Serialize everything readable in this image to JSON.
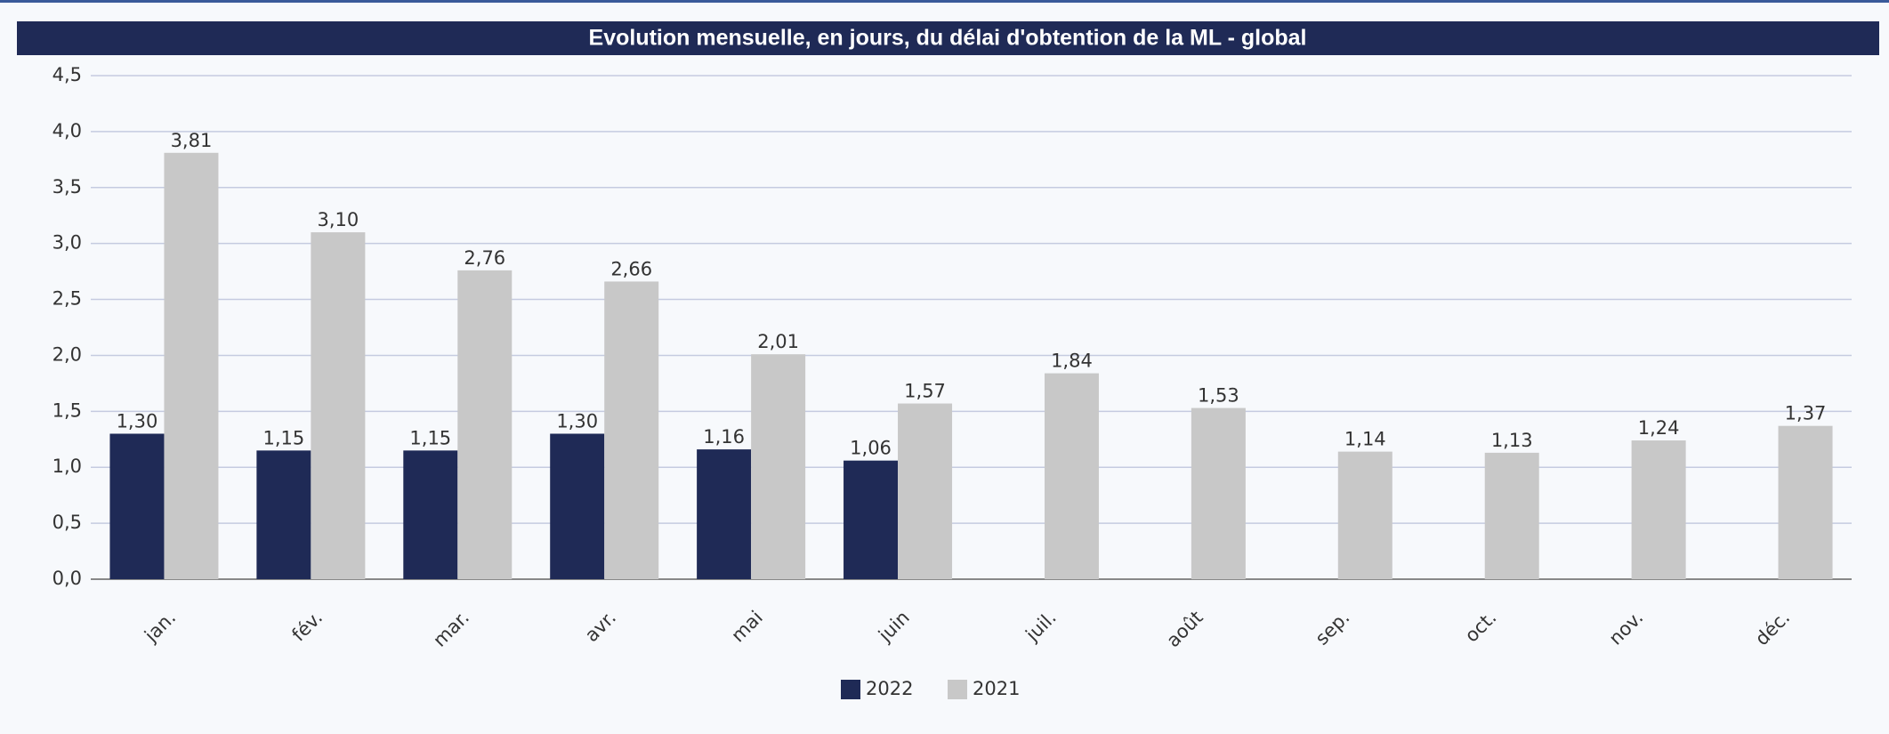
{
  "chart_data": {
    "type": "bar",
    "title": "Evolution mensuelle, en jours, du délai d'obtention de la ML - global",
    "categories": [
      "jan.",
      "fév.",
      "mar.",
      "avr.",
      "mai",
      "juin",
      "juil.",
      "août",
      "sep.",
      "oct.",
      "nov.",
      "déc."
    ],
    "series": [
      {
        "name": "2022",
        "color": "#1f2a56",
        "values": [
          1.3,
          1.15,
          1.15,
          1.3,
          1.16,
          1.06,
          null,
          null,
          null,
          null,
          null,
          null
        ],
        "value_labels": [
          "1,30",
          "1,15",
          "1,15",
          "1,30",
          "1,16",
          "1,06",
          null,
          null,
          null,
          null,
          null,
          null
        ]
      },
      {
        "name": "2021",
        "color": "#c8c8c8",
        "values": [
          3.81,
          3.1,
          2.76,
          2.66,
          2.01,
          1.57,
          1.84,
          1.53,
          1.14,
          1.13,
          1.24,
          1.37
        ],
        "value_labels": [
          "3,81",
          "3,10",
          "2,76",
          "2,66",
          "2,01",
          "1,57",
          "1,84",
          "1,53",
          "1,14",
          "1,13",
          "1,24",
          "1,37"
        ]
      }
    ],
    "ylim": [
      0,
      4.5
    ],
    "yticks": [
      {
        "value": 0,
        "label": "0,0"
      },
      {
        "value": 0.5,
        "label": "0,5"
      },
      {
        "value": 1,
        "label": "1,0"
      },
      {
        "value": 1.5,
        "label": "1,5"
      },
      {
        "value": 2,
        "label": "2,0"
      },
      {
        "value": 2.5,
        "label": "2,5"
      },
      {
        "value": 3,
        "label": "3,0"
      },
      {
        "value": 3.5,
        "label": "3,5"
      },
      {
        "value": 4,
        "label": "4,0"
      },
      {
        "value": 4.5,
        "label": "4,5"
      }
    ],
    "grid": true,
    "legend": "bottom"
  }
}
